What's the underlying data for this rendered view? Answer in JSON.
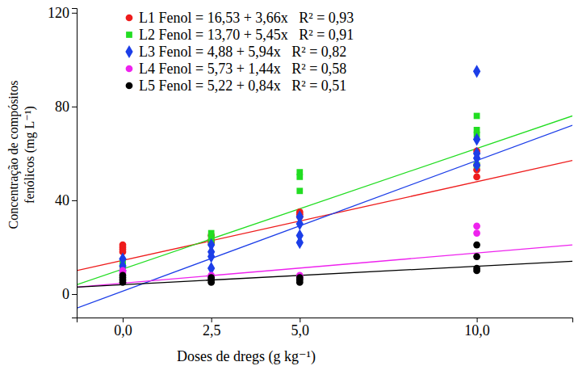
{
  "chart_data": {
    "type": "scatter",
    "x_label": "Doses de dregs (g kg⁻¹)",
    "y_label": [
      "Concentração de compósitos",
      "fenólicos (mg L⁻¹)"
    ],
    "xlim": [
      -1.3,
      12.7
    ],
    "ylim": [
      -10,
      122
    ],
    "xticks": [
      {
        "value": 0,
        "label": "0,0"
      },
      {
        "value": 2.5,
        "label": "2,5"
      },
      {
        "value": 5,
        "label": "5,0"
      },
      {
        "value": 10,
        "label": "10,0"
      }
    ],
    "yticks": [
      0,
      40,
      80,
      120
    ],
    "grid": false,
    "legend": "upper-left",
    "series": [
      {
        "name": "L1 Fenol = 16,53 + 3,66x   R² = 0,93",
        "type": "scatter",
        "marker": "circle",
        "color": "#ee1c1c",
        "x": [
          0,
          0,
          0,
          0,
          2.5,
          2.5,
          2.5,
          5,
          5,
          5,
          10,
          10,
          10,
          10
        ],
        "values": [
          18,
          19,
          20,
          21,
          22,
          23,
          25,
          33,
          34,
          35,
          50,
          53,
          55,
          61
        ]
      },
      {
        "name": "L2 Fenol = 13,70 + 5,45x   R² = 0,91",
        "type": "scatter",
        "marker": "square",
        "color": "#22dd22",
        "x": [
          0,
          0,
          2.5,
          2.5,
          2.5,
          5,
          5,
          5,
          10,
          10,
          10,
          10
        ],
        "values": [
          12,
          14,
          22,
          24,
          26,
          44,
          50,
          52,
          55,
          68,
          70,
          76
        ]
      },
      {
        "name": "L3 Fenol = 4,88 + 5,94x   R² = 0,82",
        "type": "scatter",
        "marker": "diamond",
        "color": "#1c3ee8",
        "x": [
          0,
          0,
          0,
          2.5,
          2.5,
          2.5,
          2.5,
          5,
          5,
          5,
          5,
          10,
          10,
          10,
          10,
          10
        ],
        "values": [
          10,
          12,
          15,
          11,
          16,
          18,
          21,
          22,
          25,
          30,
          33,
          55,
          58,
          60,
          66,
          95
        ]
      },
      {
        "name": "L4 Fenol = 5,73 + 1,44x   R² = 0,58",
        "type": "scatter",
        "marker": "circle",
        "color": "#ee22ee",
        "x": [
          0,
          0,
          2.5,
          2.5,
          5,
          5,
          10,
          10
        ],
        "values": [
          9,
          10,
          7,
          8,
          7,
          8,
          26,
          29
        ]
      },
      {
        "name": "L5 Fenol = 5,22 + 0,84x   R² = 0,51",
        "type": "scatter",
        "marker": "circle",
        "color": "#000000",
        "x": [
          0,
          0,
          0,
          0,
          2.5,
          2.5,
          2.5,
          5,
          5,
          5,
          10,
          10,
          10,
          10
        ],
        "values": [
          5,
          6,
          7,
          8,
          5,
          6,
          7,
          5,
          6,
          7,
          10,
          11,
          16,
          21
        ]
      },
      {
        "type": "line",
        "color": "#ee1c1c",
        "x": [
          -1.3,
          12.7
        ],
        "values": [
          10,
          57
        ]
      },
      {
        "type": "line",
        "color": "#22dd22",
        "x": [
          -1.3,
          12.7
        ],
        "values": [
          4,
          76
        ]
      },
      {
        "type": "line",
        "color": "#1c3ee8",
        "x": [
          -1.3,
          12.7
        ],
        "values": [
          -6,
          72
        ]
      },
      {
        "type": "line",
        "color": "#ee22ee",
        "x": [
          -1.3,
          12.7
        ],
        "values": [
          3,
          21
        ]
      },
      {
        "type": "line",
        "color": "#000000",
        "x": [
          -1.3,
          12.7
        ],
        "values": [
          3,
          14
        ]
      }
    ]
  }
}
